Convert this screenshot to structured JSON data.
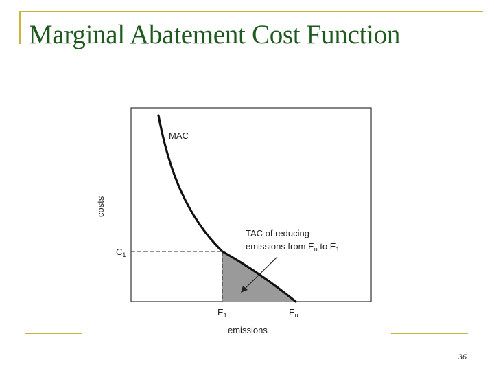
{
  "title": "Marginal Abatement Cost Function",
  "page_number": "36",
  "diagram": {
    "curve_label": "MAC",
    "y_axis_label": "costs",
    "x_axis_label": "emissions",
    "c1": {
      "letter": "C",
      "subscript": "1"
    },
    "e1": {
      "letter": "E",
      "subscript": "1"
    },
    "eu": {
      "letter": "E",
      "subscript": "u"
    },
    "annotation": {
      "line1": "TAC of reducing",
      "line2_prefix": "emissions from E",
      "line2_sub_u": "u",
      "line2_mid": " to E",
      "line2_sub_1": "1"
    },
    "colors": {
      "curve": "#111111",
      "shaded_area": "#9a9a9a",
      "frame": "#333333",
      "accent_rule": "#c9b43c"
    }
  }
}
